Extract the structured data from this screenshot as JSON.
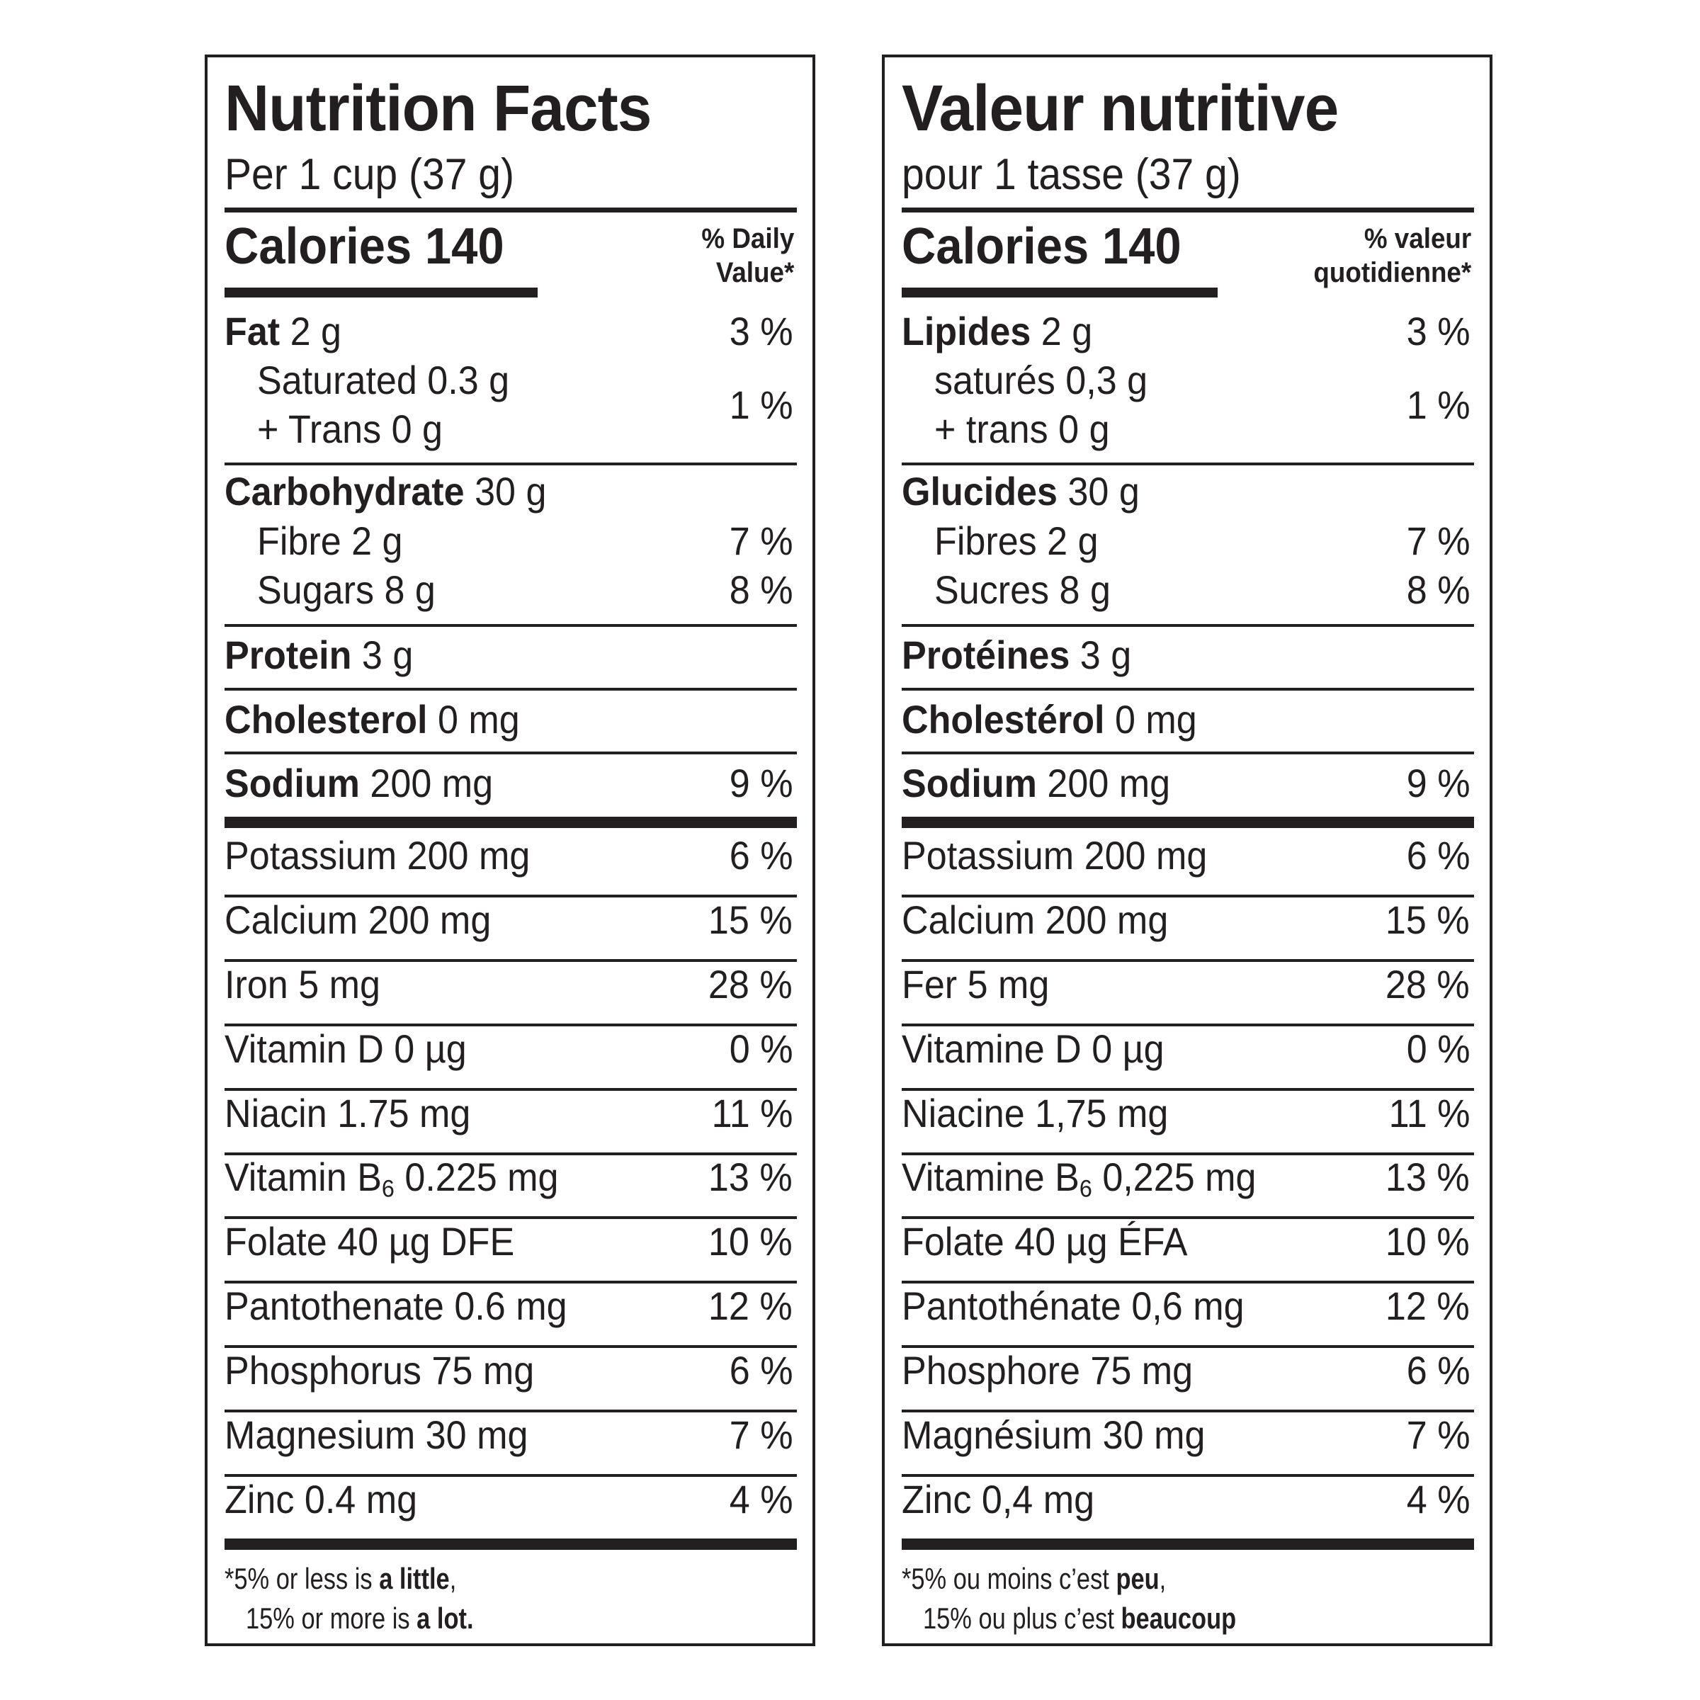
{
  "english": {
    "title": "Nutrition Facts",
    "serving": "Per 1 cup (37 g)",
    "calories_label": "Calories 140",
    "dv_header_line1": "% Daily",
    "dv_header_line2": "Value*",
    "fat": {
      "name": "Fat",
      "amount": " 2 g",
      "pct": "3 %"
    },
    "saturated": "Saturated 0.3 g",
    "trans": "+ Trans 0 g",
    "sat_trans_pct": "1 %",
    "carb": {
      "name": "Carbohydrate",
      "amount": " 30 g"
    },
    "fibre": {
      "label": "Fibre 2 g",
      "pct": "7 %"
    },
    "sugars": {
      "label": "Sugars 8 g",
      "pct": "8 %"
    },
    "protein": {
      "name": "Protein",
      "amount": " 3 g"
    },
    "cholesterol": {
      "name": "Cholesterol",
      "amount": " 0 mg"
    },
    "sodium": {
      "name": "Sodium",
      "amount": " 200 mg",
      "pct": "9 %"
    },
    "minerals": [
      {
        "label": "Potassium 200 mg",
        "pct": "6 %"
      },
      {
        "label": "Calcium 200 mg",
        "pct": "15 %"
      },
      {
        "label": "Iron 5 mg",
        "pct": "28 %"
      },
      {
        "label": "Vitamin D 0 µg",
        "pct": "0 %"
      },
      {
        "label": "Niacin 1.75 mg",
        "pct": "11 %"
      },
      {
        "label_pre": "Vitamin B",
        "label_sub": "6",
        "label_post": " 0.225 mg",
        "pct": "13 %"
      },
      {
        "label": "Folate 40 µg DFE",
        "pct": "10 %"
      },
      {
        "label": "Pantothenate 0.6 mg",
        "pct": "12 %"
      },
      {
        "label": "Phosphorus 75 mg",
        "pct": "6 %"
      },
      {
        "label": "Magnesium 30 mg",
        "pct": "7 %"
      },
      {
        "label": "Zinc 0.4 mg",
        "pct": "4 %"
      }
    ],
    "footnote_line1_pre": "*5% or less is ",
    "footnote_line1_bold": "a little",
    "footnote_line1_post": ",",
    "footnote_line2_pre": "15% or more is ",
    "footnote_line2_bold": "a lot."
  },
  "french": {
    "title": "Valeur nutritive",
    "serving": "pour 1 tasse (37 g)",
    "calories_label": "Calories 140",
    "dv_header_line1": "% valeur",
    "dv_header_line2": "quotidienne*",
    "fat": {
      "name": "Lipides",
      "amount": " 2 g",
      "pct": "3 %"
    },
    "saturated": "saturés 0,3 g",
    "trans": "+ trans 0 g",
    "sat_trans_pct": "1 %",
    "carb": {
      "name": "Glucides",
      "amount": " 30 g"
    },
    "fibre": {
      "label": "Fibres 2 g",
      "pct": "7 %"
    },
    "sugars": {
      "label": "Sucres 8 g",
      "pct": "8 %"
    },
    "protein": {
      "name": "Protéines",
      "amount": " 3 g"
    },
    "cholesterol": {
      "name": "Cholestérol",
      "amount": " 0 mg"
    },
    "sodium": {
      "name": "Sodium",
      "amount": " 200 mg",
      "pct": "9 %"
    },
    "minerals": [
      {
        "label": "Potassium 200 mg",
        "pct": "6 %"
      },
      {
        "label": "Calcium 200 mg",
        "pct": "15 %"
      },
      {
        "label": "Fer 5 mg",
        "pct": "28 %"
      },
      {
        "label": "Vitamine D 0 µg",
        "pct": "0 %"
      },
      {
        "label": "Niacine 1,75 mg",
        "pct": "11 %"
      },
      {
        "label_pre": "Vitamine B",
        "label_sub": "6",
        "label_post": " 0,225 mg",
        "pct": "13 %"
      },
      {
        "label": "Folate 40 µg ÉFA",
        "pct": "10 %"
      },
      {
        "label": "Pantothénate 0,6 mg",
        "pct": "12 %"
      },
      {
        "label": "Phosphore 75 mg",
        "pct": "6 %"
      },
      {
        "label": "Magnésium 30 mg",
        "pct": "7 %"
      },
      {
        "label": "Zinc 0,4 mg",
        "pct": "4 %"
      }
    ],
    "footnote_line1_pre": "*5% ou moins c’est ",
    "footnote_line1_bold": "peu",
    "footnote_line1_post": ",",
    "footnote_line2_pre": "15% ou plus c’est ",
    "footnote_line2_bold": "beaucoup"
  },
  "colors": {
    "ink": "#231f20",
    "background": "#ffffff"
  }
}
